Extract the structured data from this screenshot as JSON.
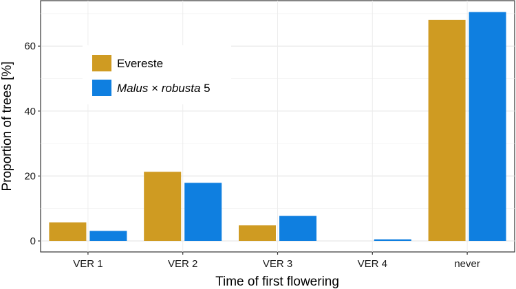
{
  "chart_data": {
    "type": "bar",
    "title": "",
    "xlabel": "Time of first flowering",
    "ylabel": "Proportion of trees [%]",
    "categories": [
      "VER 1",
      "VER 2",
      "VER 3",
      "VER 4",
      "never"
    ],
    "ylim": [
      0,
      72
    ],
    "yticks": [
      0,
      20,
      40,
      60
    ],
    "grid": true,
    "legend_position": "upper-left",
    "series": [
      {
        "name": "Evereste",
        "legend_parts": [
          "Evereste"
        ],
        "color": "#CF9B22",
        "values": [
          5.7,
          21.3,
          4.8,
          0,
          68.1
        ]
      },
      {
        "name": "Malus × robusta 5",
        "legend_parts": [
          "Malus",
          " × ",
          "robusta",
          " 5"
        ],
        "color": "#0F7FE0",
        "values": [
          3.1,
          17.9,
          7.7,
          0.5,
          70.5
        ]
      }
    ]
  }
}
